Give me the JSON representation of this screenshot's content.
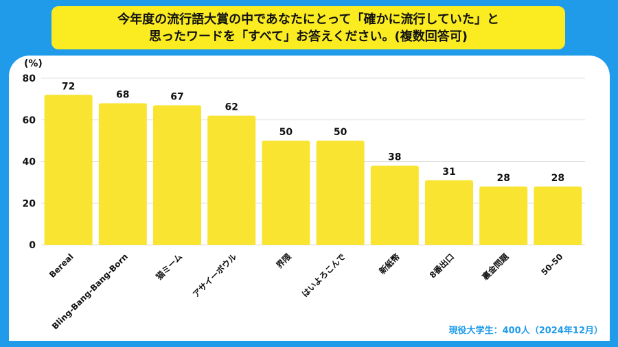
{
  "title": {
    "line1": "今年度の流行語大賞の中であなたにとって「確かに流行していた」と",
    "line2": "思ったワードを「すべて」お答えください。(複数回答可)"
  },
  "note": "現役大学生：400人（2024年12月）",
  "colors": {
    "background": "#1f9bea",
    "bar": "#f9e432",
    "title_box": "#fbec22"
  },
  "chart_data": {
    "type": "bar",
    "ylabel": "(%)",
    "ylim": [
      0,
      80
    ],
    "yticks": [
      0,
      20,
      40,
      60,
      80
    ],
    "grid": true,
    "categories": [
      "Bereal",
      "Bling-Bang-Bang-Born",
      "猫ミーム",
      "アサイーボウル",
      "界隈",
      "はいよろこんで",
      "新紙幣",
      "8番出口",
      "裏金問題",
      "50-50"
    ],
    "values": [
      72,
      68,
      67,
      62,
      50,
      50,
      38,
      31,
      28,
      28
    ]
  }
}
